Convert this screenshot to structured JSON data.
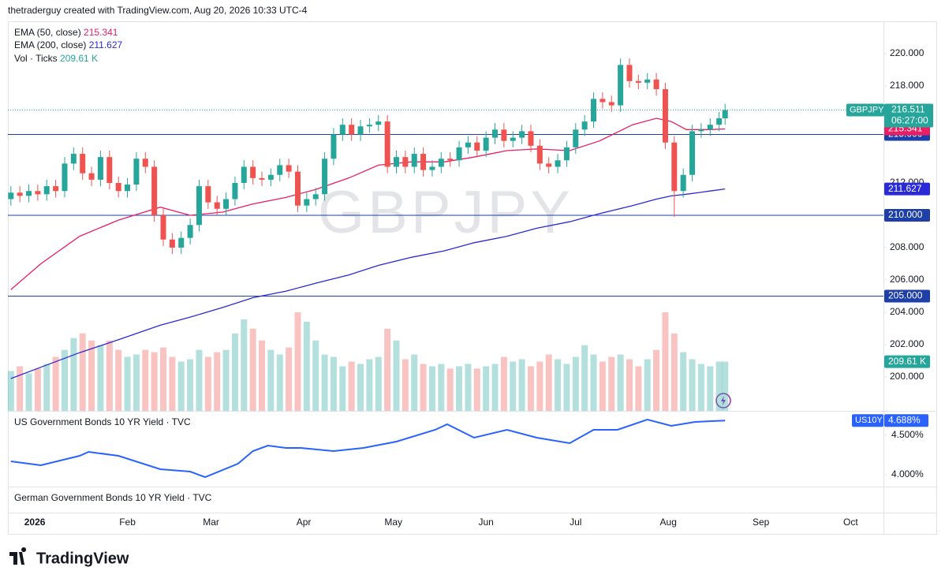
{
  "header": "thetraderguy created with TradingView.com, Aug 20, 2026 10:33 UTC-4",
  "logo": "TradingView",
  "chart_data": [
    {
      "type": "candlestick",
      "title": "GBPJPY",
      "x": [
        -8,
        -5,
        -2,
        1,
        4,
        7,
        10,
        13,
        16,
        19,
        22,
        25,
        28,
        31,
        34,
        37,
        40,
        43,
        46,
        49,
        52,
        55,
        58,
        61,
        64,
        67,
        70,
        73,
        76,
        79,
        82,
        85,
        88,
        91,
        94,
        97,
        100,
        103,
        106,
        109,
        112,
        115,
        118,
        121,
        124,
        127,
        130,
        133,
        136,
        139,
        142,
        145,
        148,
        151,
        154,
        157,
        160,
        163,
        166,
        169,
        172,
        175,
        178,
        181,
        184,
        187,
        190,
        193,
        196,
        199,
        202,
        205,
        208,
        211,
        214,
        217,
        220,
        223,
        226,
        229,
        231
      ],
      "open": [
        211.0,
        211.4,
        211.2,
        211.5,
        211.3,
        211.8,
        211.5,
        213.2,
        213.8,
        212.6,
        212.2,
        213.6,
        212.0,
        211.5,
        211.9,
        213.5,
        213.0,
        210.0,
        208.5,
        208.0,
        208.6,
        209.4,
        211.8,
        210.8,
        210.4,
        211.0,
        212.0,
        213.0,
        212.3,
        212.2,
        212.5,
        213.1,
        212.7,
        210.6,
        211.0,
        211.3,
        213.5,
        215.0,
        215.6,
        215.0,
        215.5,
        215.6,
        215.8,
        213.0,
        213.6,
        213.0,
        213.8,
        212.8,
        213.0,
        213.5,
        213.4,
        214.2,
        214.5,
        214.0,
        214.8,
        215.3,
        214.6,
        214.8,
        215.2,
        214.3,
        213.2,
        213.0,
        213.4,
        214.2,
        215.3,
        215.8,
        217.2,
        217.0,
        216.8,
        219.3,
        218.3,
        218.2,
        218.4,
        217.8,
        214.5,
        211.5,
        212.5,
        215.2,
        215.3,
        215.6,
        216.0
      ],
      "high": [
        211.8,
        211.8,
        211.9,
        211.9,
        212.2,
        212.2,
        213.6,
        214.2,
        214.2,
        213.0,
        214.0,
        214.0,
        212.4,
        212.3,
        213.9,
        213.9,
        213.4,
        210.4,
        208.9,
        209.0,
        209.8,
        212.2,
        212.2,
        211.2,
        211.4,
        212.4,
        213.4,
        213.4,
        212.7,
        212.9,
        213.5,
        213.5,
        213.1,
        211.4,
        211.7,
        213.9,
        215.4,
        216.0,
        216.0,
        215.9,
        216.0,
        216.2,
        216.2,
        214.0,
        214.0,
        214.2,
        214.2,
        213.4,
        213.9,
        213.9,
        214.6,
        214.9,
        214.9,
        215.2,
        215.7,
        215.7,
        215.2,
        215.6,
        215.6,
        214.7,
        213.6,
        213.8,
        214.6,
        215.7,
        216.2,
        217.6,
        217.6,
        217.4,
        219.7,
        219.7,
        218.7,
        218.8,
        218.8,
        218.2,
        214.9,
        212.9,
        215.6,
        215.7,
        216.0,
        216.4,
        216.9
      ],
      "low": [
        210.6,
        210.8,
        210.8,
        210.9,
        210.9,
        211.1,
        211.1,
        212.8,
        212.2,
        211.8,
        211.8,
        211.6,
        211.1,
        211.1,
        211.5,
        212.6,
        209.6,
        208.1,
        207.6,
        207.6,
        208.2,
        209.0,
        210.4,
        210.0,
        210.0,
        210.6,
        211.6,
        211.9,
        211.8,
        211.8,
        212.1,
        212.3,
        210.2,
        210.2,
        210.6,
        210.9,
        213.1,
        214.6,
        214.6,
        214.6,
        215.1,
        215.2,
        212.6,
        212.6,
        212.6,
        212.6,
        212.4,
        212.4,
        212.6,
        213.0,
        213.0,
        213.8,
        213.6,
        213.6,
        214.4,
        214.2,
        214.2,
        214.4,
        213.9,
        212.8,
        212.6,
        212.6,
        213.0,
        213.8,
        214.9,
        215.4,
        216.6,
        216.4,
        216.4,
        217.9,
        217.8,
        217.8,
        217.4,
        214.1,
        209.9,
        211.1,
        212.1,
        214.8,
        214.9,
        215.2,
        215.6
      ],
      "close": [
        211.4,
        211.2,
        211.5,
        211.3,
        211.8,
        211.5,
        213.2,
        213.8,
        212.6,
        212.2,
        213.6,
        212.0,
        211.5,
        211.9,
        213.5,
        213.0,
        210.0,
        208.5,
        208.0,
        208.6,
        209.4,
        211.8,
        210.8,
        210.4,
        211.0,
        212.0,
        213.0,
        212.3,
        212.2,
        212.5,
        213.1,
        212.7,
        210.6,
        211.0,
        211.3,
        213.5,
        215.0,
        215.6,
        215.0,
        215.5,
        215.6,
        215.8,
        213.0,
        213.6,
        213.0,
        213.8,
        212.8,
        213.0,
        213.5,
        213.4,
        214.2,
        214.5,
        214.0,
        214.8,
        215.3,
        214.6,
        214.8,
        215.2,
        214.3,
        213.2,
        213.0,
        213.4,
        214.2,
        215.3,
        215.8,
        217.2,
        217.0,
        216.8,
        219.3,
        218.3,
        218.2,
        218.4,
        217.8,
        214.5,
        211.5,
        212.5,
        215.2,
        215.3,
        215.6,
        216.0,
        216.511
      ],
      "volume": [
        170,
        190,
        160,
        180,
        200,
        230,
        260,
        310,
        330,
        300,
        280,
        300,
        260,
        230,
        240,
        260,
        250,
        270,
        230,
        210,
        220,
        260,
        230,
        250,
        260,
        330,
        390,
        350,
        300,
        260,
        240,
        270,
        420,
        380,
        300,
        240,
        230,
        190,
        210,
        200,
        220,
        230,
        350,
        300,
        220,
        240,
        200,
        190,
        200,
        180,
        190,
        200,
        180,
        190,
        200,
        230,
        210,
        220,
        190,
        210,
        240,
        220,
        200,
        230,
        280,
        240,
        210,
        230,
        240,
        220,
        190,
        220,
        260,
        420,
        330,
        250,
        220,
        200,
        190,
        210,
        209.61
      ],
      "volume_name": "Vol · Ticks",
      "volume_value_label": "209.61 K",
      "up_color": "#26a69a",
      "down_color": "#ef5350",
      "last_price": 216.511,
      "countdown": "06:27:00",
      "series": [
        {
          "name": "EMA (50, close)",
          "color": "#e91e63",
          "x": [
            -8,
            2,
            15,
            28,
            42,
            52,
            63,
            73,
            84,
            94,
            105,
            115,
            126,
            137,
            147,
            158,
            168,
            179,
            189,
            200,
            208,
            213,
            218,
            226,
            231
          ],
          "values": [
            205.4,
            207.0,
            208.7,
            209.7,
            210.5,
            210.0,
            210.2,
            210.7,
            211.1,
            211.6,
            212.3,
            213.1,
            213.3,
            213.3,
            213.6,
            214.0,
            214.1,
            214.0,
            214.6,
            215.6,
            216.0,
            215.8,
            215.3,
            215.3,
            215.341
          ]
        },
        {
          "name": "EMA (200, close)",
          "color": "#2a2ad6",
          "x": [
            -8,
            2,
            15,
            28,
            42,
            52,
            63,
            73,
            84,
            94,
            105,
            115,
            126,
            137,
            147,
            158,
            168,
            179,
            189,
            200,
            208,
            213,
            218,
            226,
            231
          ],
          "values": [
            199.9,
            200.6,
            201.5,
            202.3,
            203.2,
            203.7,
            204.3,
            204.9,
            205.3,
            205.8,
            206.3,
            206.9,
            207.4,
            207.8,
            208.3,
            208.7,
            209.2,
            209.6,
            210.1,
            210.6,
            211.0,
            211.2,
            211.3,
            211.5,
            211.627
          ]
        }
      ],
      "levels": [
        {
          "value": 215,
          "label": "215.000"
        },
        {
          "value": 210,
          "label": "210.000"
        },
        {
          "value": 205,
          "label": "205.000"
        }
      ],
      "level_color": "#1e3fa8",
      "xlim": [
        -9,
        284
      ],
      "xticks": [
        {
          "value": 0,
          "label": "2026"
        },
        {
          "value": 31,
          "label": "Feb"
        },
        {
          "value": 59,
          "label": "Mar"
        },
        {
          "value": 90,
          "label": "Apr"
        },
        {
          "value": 120,
          "label": "May"
        },
        {
          "value": 151,
          "label": "Jun"
        },
        {
          "value": 181,
          "label": "Jul"
        },
        {
          "value": 212,
          "label": "Aug"
        },
        {
          "value": 243,
          "label": "Sep"
        },
        {
          "value": 273,
          "label": "Oct"
        }
      ],
      "ylim": [
        197.9,
        222
      ],
      "yticks": [
        {
          "value": 220,
          "label": "220.000"
        },
        {
          "value": 218,
          "label": "218.000"
        },
        {
          "value": 212,
          "label": "212.000"
        },
        {
          "value": 208,
          "label": "208.000"
        },
        {
          "value": 206,
          "label": "206.000"
        },
        {
          "value": 204,
          "label": "204.000"
        },
        {
          "value": 202,
          "label": "202.000"
        },
        {
          "value": 200,
          "label": "200.000"
        }
      ]
    },
    {
      "type": "line",
      "title": "US Government Bonds 10 YR Yield · TVC",
      "symbol": "US10Y",
      "color": "#2962ff",
      "x": [
        -8,
        2,
        15,
        18,
        28,
        42,
        52,
        57,
        68,
        73,
        78,
        84,
        89,
        100,
        110,
        121,
        134,
        138,
        147,
        158,
        168,
        179,
        187,
        195,
        205,
        213,
        221,
        231
      ],
      "values": [
        4.17,
        4.12,
        4.24,
        4.29,
        4.24,
        4.07,
        4.04,
        3.97,
        4.14,
        4.3,
        4.37,
        4.34,
        4.34,
        4.3,
        4.34,
        4.42,
        4.57,
        4.64,
        4.47,
        4.57,
        4.47,
        4.4,
        4.57,
        4.57,
        4.7,
        4.62,
        4.67,
        4.688
      ],
      "value_label": "4.688%",
      "ylim": [
        3.85,
        4.81
      ],
      "yticks": [
        {
          "value": 4.5,
          "label": "4.500%"
        },
        {
          "value": 4,
          "label": "4.000%"
        }
      ]
    },
    {
      "type": "line",
      "title": "German Government Bonds 10 YR Yield · TVC"
    }
  ]
}
